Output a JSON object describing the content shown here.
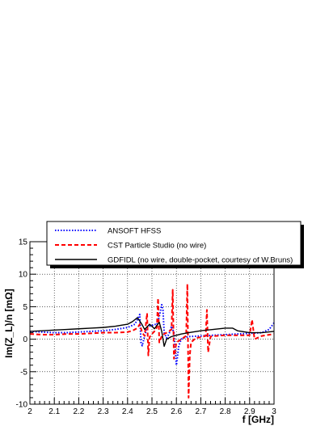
{
  "chart_data": {
    "type": "line",
    "xlabel": "f [GHz]",
    "ylabel": "Im(Z_L)/n [mΩ]",
    "xlim": [
      2,
      3
    ],
    "ylim": [
      -10,
      15
    ],
    "grid": true,
    "legend_position": "top",
    "x_ticks": [
      "2",
      "2.1",
      "2.2",
      "2.3",
      "2.4",
      "2.5",
      "2.6",
      "2.7",
      "2.8",
      "2.9",
      "3"
    ],
    "y_ticks": [
      "-10",
      "-5",
      "0",
      "5",
      "10",
      "15"
    ],
    "series": [
      {
        "name": "ANSOFT HFSS",
        "color": "#0000ff",
        "style": "dotted",
        "x": [
          2.0,
          2.05,
          2.1,
          2.15,
          2.2,
          2.25,
          2.3,
          2.35,
          2.4,
          2.43,
          2.44,
          2.45,
          2.455,
          2.46,
          2.47,
          2.48,
          2.49,
          2.5,
          2.51,
          2.52,
          2.53,
          2.54,
          2.545,
          2.55,
          2.56,
          2.57,
          2.58,
          2.59,
          2.6,
          2.61,
          2.62,
          2.63,
          2.65,
          2.7,
          2.75,
          2.8,
          2.85,
          2.9,
          2.95,
          2.98,
          3.0
        ],
        "y": [
          1.2,
          1.1,
          1.0,
          1.0,
          1.1,
          1.2,
          1.3,
          1.5,
          1.8,
          2.3,
          3.0,
          3.8,
          -0.5,
          -1.0,
          0.5,
          1.8,
          2.0,
          2.1,
          2.3,
          2.2,
          3.5,
          5.3,
          4.5,
          1.0,
          0.2,
          0.8,
          2.0,
          1.0,
          -4.0,
          -1.0,
          0.0,
          0.2,
          0.4,
          0.5,
          0.6,
          0.7,
          0.8,
          0.9,
          1.0,
          1.5,
          2.5
        ]
      },
      {
        "name": "CST Particle Studio (no wire)",
        "color": "#ff0000",
        "style": "dashed",
        "x": [
          2.0,
          2.05,
          2.1,
          2.15,
          2.2,
          2.25,
          2.3,
          2.35,
          2.4,
          2.42,
          2.44,
          2.45,
          2.46,
          2.47,
          2.48,
          2.485,
          2.49,
          2.5,
          2.51,
          2.52,
          2.525,
          2.53,
          2.54,
          2.55,
          2.56,
          2.57,
          2.58,
          2.585,
          2.59,
          2.6,
          2.62,
          2.64,
          2.645,
          2.65,
          2.655,
          2.66,
          2.68,
          2.7,
          2.72,
          2.725,
          2.73,
          2.74,
          2.76,
          2.8,
          2.85,
          2.9,
          2.91,
          2.92,
          2.95,
          3.0
        ],
        "y": [
          0.8,
          0.7,
          0.7,
          0.8,
          0.8,
          0.9,
          1.0,
          1.0,
          1.1,
          1.3,
          1.7,
          2.3,
          1.0,
          0.5,
          4.0,
          -2.5,
          0.3,
          0.8,
          1.2,
          1.8,
          6.3,
          -0.5,
          0.5,
          0.8,
          1.0,
          1.2,
          1.5,
          7.6,
          -3.0,
          -0.5,
          0.0,
          0.5,
          8.5,
          -9.0,
          -2.5,
          -0.5,
          0.2,
          0.3,
          0.5,
          4.5,
          -2.0,
          0.4,
          0.5,
          0.6,
          0.6,
          0.6,
          3.0,
          0.0,
          0.5,
          0.8
        ]
      },
      {
        "name": "GDFIDL (no wire, double-pocket, courtesy of W.Bruns)",
        "color": "#000000",
        "style": "solid",
        "x": [
          2.0,
          2.05,
          2.1,
          2.15,
          2.2,
          2.25,
          2.3,
          2.35,
          2.4,
          2.42,
          2.44,
          2.45,
          2.46,
          2.47,
          2.48,
          2.49,
          2.5,
          2.51,
          2.52,
          2.53,
          2.54,
          2.55,
          2.56,
          2.57,
          2.58,
          2.6,
          2.62,
          2.65,
          2.7,
          2.75,
          2.8,
          2.83,
          2.85,
          2.9,
          2.95,
          3.0
        ],
        "y": [
          1.2,
          1.3,
          1.4,
          1.5,
          1.6,
          1.7,
          1.8,
          2.0,
          2.3,
          2.7,
          3.3,
          2.8,
          2.2,
          1.5,
          1.9,
          2.3,
          2.0,
          1.6,
          2.1,
          2.6,
          1.2,
          -1.1,
          0.0,
          0.2,
          0.4,
          0.6,
          0.8,
          1.0,
          1.3,
          1.5,
          1.7,
          1.7,
          1.3,
          1.0,
          1.0,
          1.2
        ]
      }
    ]
  }
}
